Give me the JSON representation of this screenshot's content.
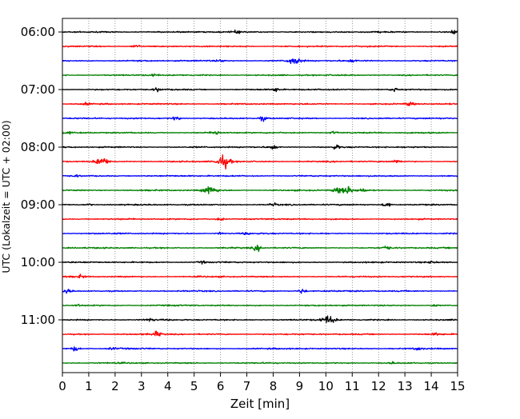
{
  "chart_data": {
    "type": "line",
    "title": "",
    "xlabel": "Zeit  [min]",
    "ylabel": "UTC (Lokalzeit = UTC + 02:00)",
    "xlim": [
      0,
      15
    ],
    "x_ticks": [
      "0",
      "1",
      "2",
      "3",
      "4",
      "5",
      "6",
      "7",
      "8",
      "9",
      "10",
      "11",
      "12",
      "13",
      "14",
      "15"
    ],
    "y_tick_labels": [
      "06:00",
      "07:00",
      "08:00",
      "09:00",
      "10:00",
      "11:00"
    ],
    "grid": "vertical dotted",
    "trace_interval_min": 15,
    "color_cycle": [
      "#000000",
      "#ff0000",
      "#0000ff",
      "#008000"
    ],
    "traces": [
      {
        "start": "06:00",
        "color": "#000000",
        "events": [
          {
            "t": 14.9,
            "amp": 0.7
          },
          {
            "t": 6.6,
            "amp": 0.25
          }
        ]
      },
      {
        "start": "06:15",
        "color": "#ff0000",
        "events": [
          {
            "t": 2.8,
            "amp": 0.35
          }
        ]
      },
      {
        "start": "06:30",
        "color": "#0000ff",
        "events": [
          {
            "t": 8.8,
            "amp": 0.75
          },
          {
            "t": 11.0,
            "amp": 0.25
          },
          {
            "t": 6.0,
            "amp": 0.2
          }
        ]
      },
      {
        "start": "06:45",
        "color": "#008000",
        "events": [
          {
            "t": 3.5,
            "amp": 0.3
          }
        ]
      },
      {
        "start": "07:00",
        "color": "#000000",
        "events": [
          {
            "t": 3.6,
            "amp": 0.35
          },
          {
            "t": 8.1,
            "amp": 0.4
          },
          {
            "t": 12.6,
            "amp": 0.35
          }
        ]
      },
      {
        "start": "07:15",
        "color": "#ff0000",
        "events": [
          {
            "t": 13.2,
            "amp": 0.45
          },
          {
            "t": 0.9,
            "amp": 0.2
          }
        ]
      },
      {
        "start": "07:30",
        "color": "#0000ff",
        "events": [
          {
            "t": 4.3,
            "amp": 0.45
          },
          {
            "t": 7.6,
            "amp": 0.45
          }
        ]
      },
      {
        "start": "07:45",
        "color": "#008000",
        "events": [
          {
            "t": 5.8,
            "amp": 0.5
          },
          {
            "t": 10.3,
            "amp": 0.3
          },
          {
            "t": 0.2,
            "amp": 0.2
          }
        ]
      },
      {
        "start": "08:00",
        "color": "#000000",
        "events": [
          {
            "t": 8.0,
            "amp": 0.45
          },
          {
            "t": 10.4,
            "amp": 0.45
          }
        ]
      },
      {
        "start": "08:15",
        "color": "#ff0000",
        "events": [
          {
            "t": 1.5,
            "amp": 0.75
          },
          {
            "t": 6.1,
            "amp": 1.3
          },
          {
            "t": 12.7,
            "amp": 0.3
          }
        ]
      },
      {
        "start": "08:30",
        "color": "#0000ff",
        "events": [
          {
            "t": 0.5,
            "amp": 0.2
          }
        ]
      },
      {
        "start": "08:45",
        "color": "#008000",
        "events": [
          {
            "t": 5.6,
            "amp": 0.9
          },
          {
            "t": 10.8,
            "amp": 0.8
          },
          {
            "t": 10.4,
            "amp": 0.5
          },
          {
            "t": 11.4,
            "amp": 0.35
          }
        ]
      },
      {
        "start": "09:00",
        "color": "#000000",
        "events": [
          {
            "t": 12.3,
            "amp": 0.55
          },
          {
            "t": 8.0,
            "amp": 0.3
          },
          {
            "t": 1.0,
            "amp": 0.2
          }
        ]
      },
      {
        "start": "09:15",
        "color": "#ff0000",
        "events": [
          {
            "t": 6.0,
            "amp": 0.35
          }
        ]
      },
      {
        "start": "09:30",
        "color": "#0000ff",
        "events": [
          {
            "t": 6.0,
            "amp": 0.25
          },
          {
            "t": 7.0,
            "amp": 0.2
          }
        ]
      },
      {
        "start": "09:45",
        "color": "#008000",
        "events": [
          {
            "t": 7.4,
            "amp": 0.6
          },
          {
            "t": 12.3,
            "amp": 0.35
          }
        ]
      },
      {
        "start": "10:00",
        "color": "#000000",
        "events": [
          {
            "t": 5.3,
            "amp": 0.25
          },
          {
            "t": 14.0,
            "amp": 0.2
          }
        ]
      },
      {
        "start": "10:15",
        "color": "#ff0000",
        "events": [
          {
            "t": 0.7,
            "amp": 0.3
          }
        ]
      },
      {
        "start": "10:30",
        "color": "#0000ff",
        "events": [
          {
            "t": 0.2,
            "amp": 0.5
          },
          {
            "t": 9.1,
            "amp": 0.55
          }
        ]
      },
      {
        "start": "10:45",
        "color": "#008000",
        "events": [
          {
            "t": 0.6,
            "amp": 0.25
          },
          {
            "t": 14.1,
            "amp": 0.25
          }
        ]
      },
      {
        "start": "11:00",
        "color": "#000000",
        "events": [
          {
            "t": 10.1,
            "amp": 0.85
          },
          {
            "t": 3.3,
            "amp": 0.3
          }
        ]
      },
      {
        "start": "11:15",
        "color": "#ff0000",
        "events": [
          {
            "t": 3.6,
            "amp": 0.55
          },
          {
            "t": 14.2,
            "amp": 0.2
          }
        ]
      },
      {
        "start": "11:30",
        "color": "#0000ff",
        "events": [
          {
            "t": 0.5,
            "amp": 0.5
          },
          {
            "t": 13.5,
            "amp": 0.3
          },
          {
            "t": 1.9,
            "amp": 0.2
          }
        ]
      },
      {
        "start": "11:45",
        "color": "#008000",
        "events": [
          {
            "t": 12.5,
            "amp": 0.2
          }
        ]
      }
    ]
  }
}
